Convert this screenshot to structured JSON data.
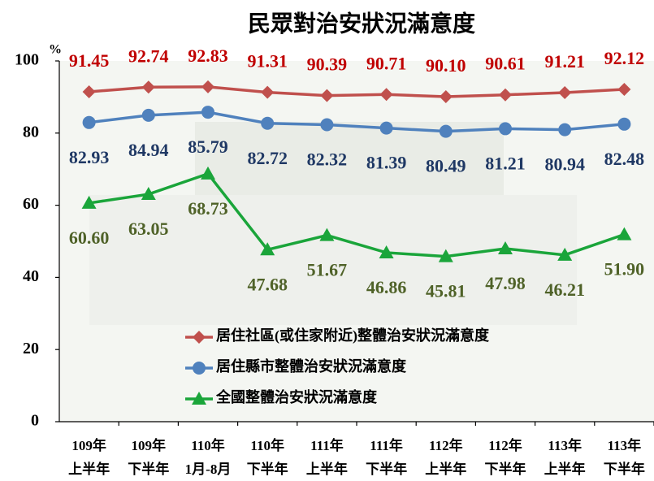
{
  "chart_data": {
    "type": "line",
    "title": "民眾對治安狀況滿意度",
    "y_unit": "%",
    "categories": [
      "109年\n上半年",
      "109年\n下半年",
      "110年\n1月-8月",
      "110年\n下半年",
      "111年\n上半年",
      "111年\n下半年",
      "112年\n上半年",
      "112年\n下半年",
      "113年\n上半年",
      "113年\n下半年"
    ],
    "ylim": [
      0,
      100
    ],
    "yticks": [
      0,
      20,
      40,
      60,
      80,
      100
    ],
    "series": [
      {
        "name": "居住社區(或住家附近)整體治安狀況滿意度",
        "color": "#c0504d",
        "label_color": "#c00000",
        "marker": "diamond",
        "values": [
          91.45,
          92.74,
          92.83,
          91.31,
          90.39,
          90.71,
          90.1,
          90.61,
          91.21,
          92.12
        ],
        "value_labels": [
          "91.45",
          "92.74",
          "92.83",
          "91.31",
          "90.39",
          "90.71",
          "90.10",
          "90.61",
          "91.21",
          "92.12"
        ]
      },
      {
        "name": "居住縣市整體治安狀況滿意度",
        "color": "#4f81bd",
        "label_color": "#1f3864",
        "marker": "circle",
        "values": [
          82.93,
          84.94,
          85.79,
          82.72,
          82.32,
          81.39,
          80.49,
          81.21,
          80.94,
          82.48
        ],
        "value_labels": [
          "82.93",
          "84.94",
          "85.79",
          "82.72",
          "82.32",
          "81.39",
          "80.49",
          "81.21",
          "80.94",
          "82.48"
        ]
      },
      {
        "name": "全國整體治安狀況滿意度",
        "color": "#1aa53a",
        "label_color": "#4f6228",
        "marker": "triangle",
        "values": [
          60.6,
          63.05,
          68.73,
          47.68,
          51.67,
          46.86,
          45.81,
          47.98,
          46.21,
          51.9
        ],
        "value_labels": [
          "60.60",
          "63.05",
          "68.73",
          "47.68",
          "51.67",
          "46.86",
          "45.81",
          "47.98",
          "46.21",
          "51.90"
        ]
      }
    ]
  }
}
